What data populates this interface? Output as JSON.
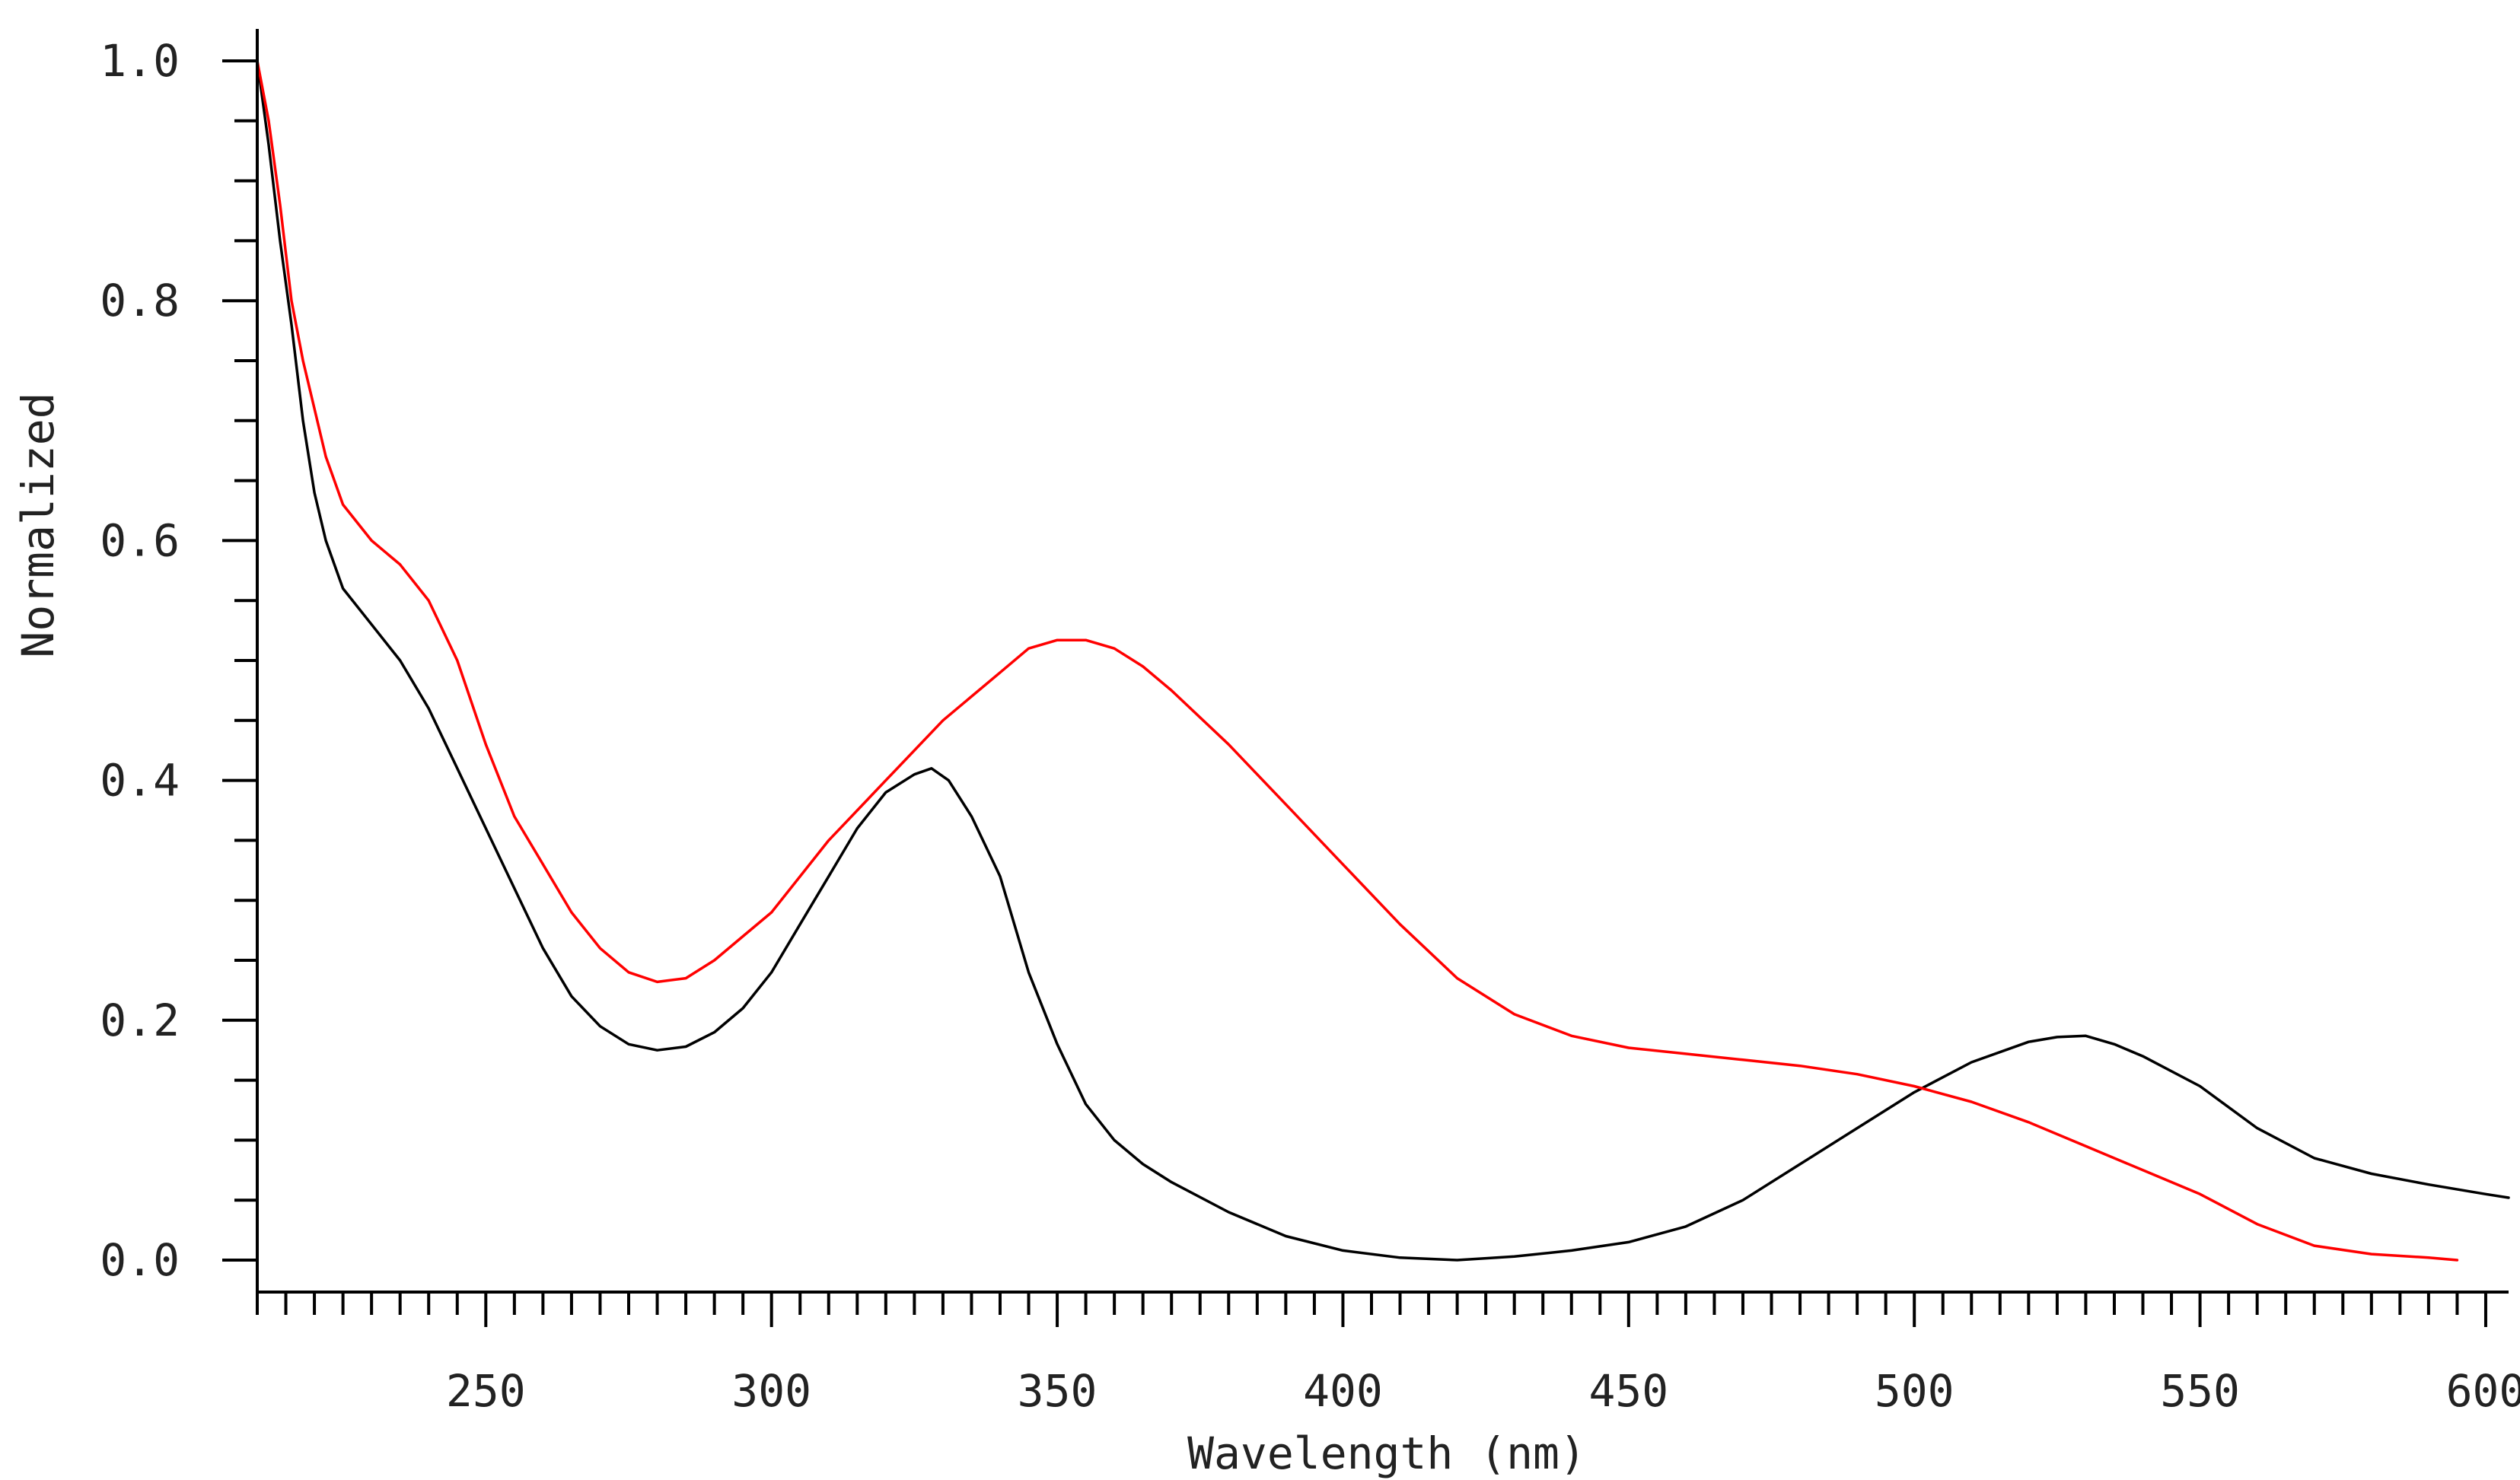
{
  "chart_data": {
    "type": "line",
    "title": "",
    "xlabel": "Wavelength (nm)",
    "ylabel": "Normalized",
    "xlim": [
      210,
      604
    ],
    "ylim": [
      0.0,
      1.0
    ],
    "x_ticks": [
      250,
      300,
      350,
      400,
      450,
      500,
      550,
      600
    ],
    "x_tick_labels": [
      "250",
      "300",
      "350",
      "400",
      "450",
      "500",
      "550",
      "600"
    ],
    "y_ticks": [
      0.0,
      0.2,
      0.4,
      0.6,
      0.8,
      1.0
    ],
    "y_tick_labels": [
      "0.0",
      "0.2",
      "0.4",
      "0.6",
      "0.8",
      "1.0"
    ],
    "grid": false,
    "legend": "none",
    "series": [
      {
        "color": "#000000",
        "x": [
          210,
          212,
          214,
          216,
          218,
          220,
          222,
          225,
          230,
          235,
          240,
          245,
          250,
          255,
          260,
          265,
          270,
          275,
          280,
          285,
          290,
          295,
          300,
          305,
          310,
          315,
          320,
          325,
          328,
          331,
          335,
          340,
          345,
          350,
          355,
          360,
          365,
          370,
          380,
          390,
          400,
          410,
          420,
          430,
          440,
          450,
          460,
          470,
          480,
          490,
          500,
          510,
          520,
          525,
          530,
          535,
          540,
          550,
          560,
          570,
          580,
          590,
          600,
          604
        ],
        "y": [
          1.0,
          0.93,
          0.85,
          0.78,
          0.7,
          0.64,
          0.6,
          0.56,
          0.53,
          0.5,
          0.46,
          0.41,
          0.36,
          0.31,
          0.26,
          0.22,
          0.195,
          0.18,
          0.175,
          0.178,
          0.19,
          0.21,
          0.24,
          0.28,
          0.32,
          0.36,
          0.39,
          0.405,
          0.41,
          0.4,
          0.37,
          0.32,
          0.24,
          0.18,
          0.13,
          0.1,
          0.08,
          0.065,
          0.04,
          0.02,
          0.008,
          0.002,
          0.0,
          0.003,
          0.008,
          0.015,
          0.028,
          0.05,
          0.08,
          0.11,
          0.14,
          0.165,
          0.182,
          0.186,
          0.187,
          0.18,
          0.17,
          0.145,
          0.11,
          0.085,
          0.072,
          0.063,
          0.055,
          0.052
        ]
      },
      {
        "color": "#ff0000",
        "x": [
          210,
          212,
          214,
          216,
          218,
          220,
          222,
          225,
          230,
          235,
          240,
          245,
          250,
          255,
          260,
          265,
          270,
          275,
          280,
          285,
          290,
          295,
          300,
          310,
          320,
          330,
          340,
          345,
          350,
          355,
          360,
          365,
          370,
          380,
          390,
          400,
          410,
          420,
          430,
          440,
          450,
          460,
          470,
          480,
          490,
          500,
          510,
          520,
          530,
          540,
          550,
          560,
          570,
          580,
          590,
          595
        ],
        "y": [
          1.0,
          0.95,
          0.88,
          0.8,
          0.75,
          0.71,
          0.67,
          0.63,
          0.6,
          0.58,
          0.55,
          0.5,
          0.43,
          0.37,
          0.33,
          0.29,
          0.26,
          0.24,
          0.232,
          0.235,
          0.25,
          0.27,
          0.29,
          0.35,
          0.4,
          0.45,
          0.49,
          0.51,
          0.517,
          0.517,
          0.51,
          0.495,
          0.475,
          0.43,
          0.38,
          0.33,
          0.28,
          0.235,
          0.205,
          0.187,
          0.177,
          0.172,
          0.167,
          0.162,
          0.155,
          0.145,
          0.132,
          0.115,
          0.095,
          0.075,
          0.055,
          0.03,
          0.012,
          0.005,
          0.002,
          0.0
        ]
      }
    ]
  }
}
